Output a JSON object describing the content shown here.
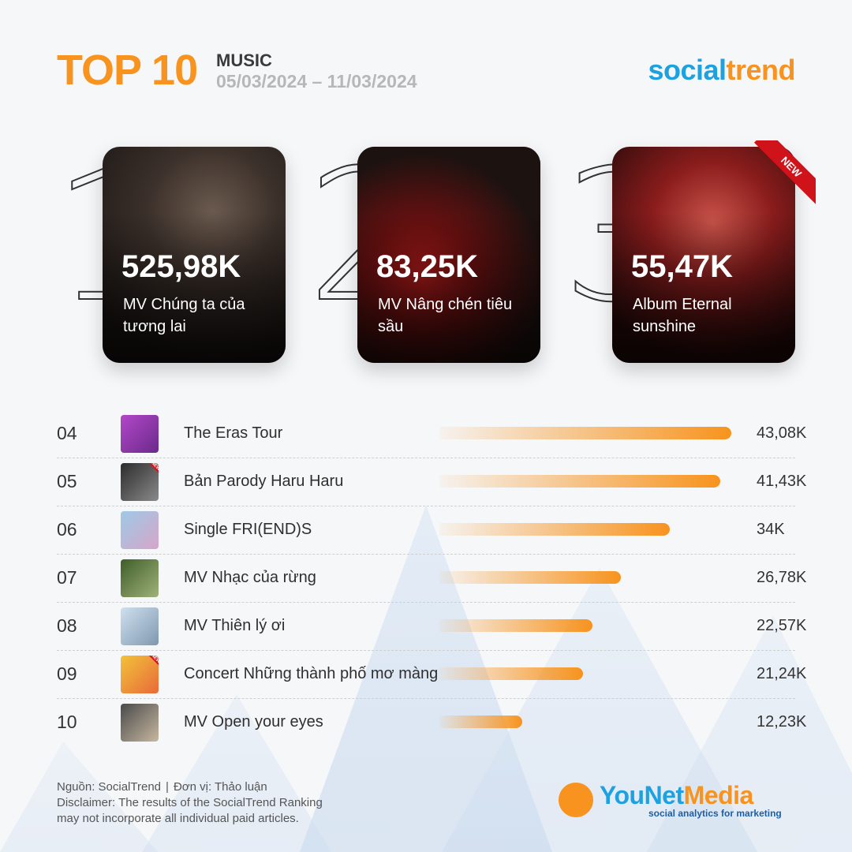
{
  "header": {
    "title": "TOP 10",
    "category": "MUSIC",
    "date_range": "05/03/2024 – 11/03/2024",
    "brand_part1": "social",
    "brand_part2": "trend"
  },
  "top3": [
    {
      "rank": "1",
      "value": "525,98K",
      "name": "MV Chúng ta của tương lai",
      "is_new": false
    },
    {
      "rank": "2",
      "value": "83,25K",
      "name": "MV Nâng chén tiêu sầu",
      "is_new": false
    },
    {
      "rank": "3",
      "value": "55,47K",
      "name": "Album Eternal sunshine",
      "is_new": true,
      "badge": "NEW"
    }
  ],
  "list": [
    {
      "rank": "04",
      "title": "The Eras Tour",
      "value_label": "43,08K",
      "is_new": false
    },
    {
      "rank": "05",
      "title": "Bản Parody Haru Haru",
      "value_label": "41,43K",
      "is_new": true,
      "badge": "NEW"
    },
    {
      "rank": "06",
      "title": "Single FRI(END)S",
      "value_label": "34K",
      "is_new": false
    },
    {
      "rank": "07",
      "title": "MV Nhạc của rừng",
      "value_label": "26,78K",
      "is_new": false
    },
    {
      "rank": "08",
      "title": "MV Thiên lý ơi",
      "value_label": "22,57K",
      "is_new": false
    },
    {
      "rank": "09",
      "title": "Concert Những thành phố mơ màng",
      "value_label": "21,24K",
      "is_new": true,
      "badge": "NEW"
    },
    {
      "rank": "10",
      "title": "MV Open your eyes",
      "value_label": "12,23K",
      "is_new": false
    }
  ],
  "chart_data": {
    "type": "bar",
    "categories": [
      "The Eras Tour",
      "Bản Parody Haru Haru",
      "Single FRI(END)S",
      "MV Nhạc của rừng",
      "MV Thiên lý ơi",
      "Concert Những thành phố mơ màng",
      "MV Open your eyes"
    ],
    "values": [
      43.08,
      41.43,
      34,
      26.78,
      22.57,
      21.24,
      12.23
    ],
    "ylabel": "",
    "title": ""
  },
  "footer": {
    "source": "Nguồn: SocialTrend",
    "unit": "Đơn vị: Thảo luận",
    "separator": "|",
    "disclaimer_line1": "Disclaimer: The results of the SocialTrend Ranking",
    "disclaimer_line2": "may not incorporate all individual paid articles."
  },
  "logo": {
    "name_part1": "YouNet",
    "name_part2": "Media",
    "tagline": "social analytics for marketing"
  },
  "colors": {
    "accent": "#f7931e",
    "brand_blue": "#1da1e0",
    "new_badge": "#d0121b"
  }
}
